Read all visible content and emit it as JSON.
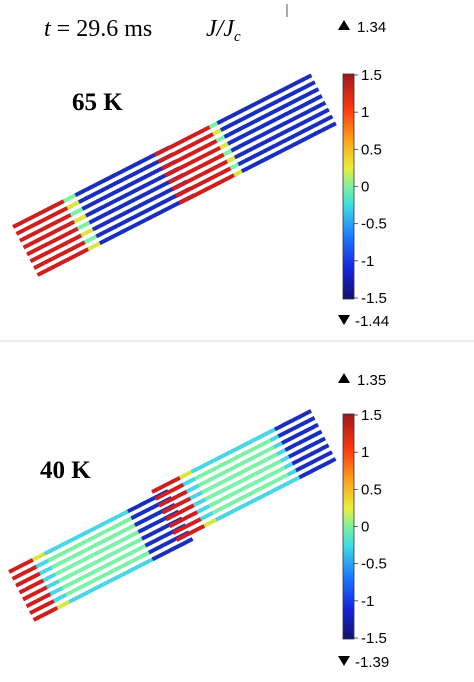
{
  "header": {
    "time_label": "t = 29.6 ms",
    "quantity_label": "J/Jc",
    "quantity_main": "J/J",
    "quantity_sub": "c"
  },
  "colorbar": {
    "ticks": [
      "1.5",
      "1",
      "0.5",
      "0",
      "-0.5",
      "-1",
      "-1.5"
    ],
    "colors": [
      "#2b1bc9",
      "#1e8bff",
      "#3fe6c4",
      "#7cf07a",
      "#f0e23a",
      "#ff7a1a",
      "#b01a1a"
    ]
  },
  "panels": [
    {
      "temperature_label": "65 K",
      "max_label": "1.34",
      "min_label": "-1.44",
      "max_marker": "up-triangle-icon",
      "min_marker": "down-triangle-icon"
    },
    {
      "temperature_label": "40 K",
      "max_label": "1.35",
      "min_label": "-1.39",
      "max_marker": "up-triangle-icon",
      "min_marker": "down-triangle-icon"
    }
  ]
}
